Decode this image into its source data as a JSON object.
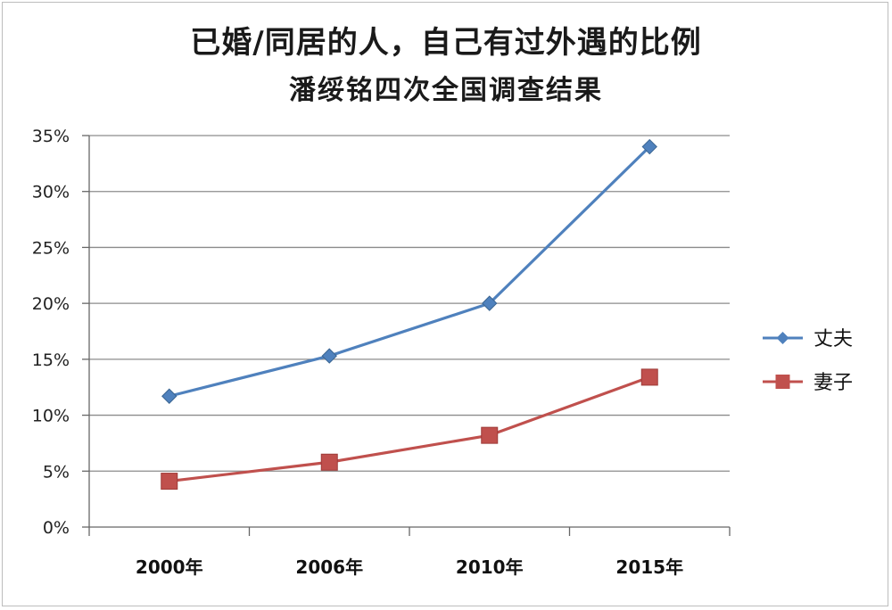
{
  "chart_data": {
    "type": "line",
    "title": "已婚/同居的人，自己有过外遇的比例",
    "subtitle": "潘绥铭四次全国调查结果",
    "categories": [
      "2000年",
      "2006年",
      "2010年",
      "2015年"
    ],
    "series": [
      {
        "name": "丈夫",
        "values": [
          11.7,
          15.3,
          20.0,
          34.0
        ],
        "color": "#4f81bd",
        "marker": "diamond"
      },
      {
        "name": "妻子",
        "values": [
          4.1,
          5.8,
          8.2,
          13.4
        ],
        "color": "#c0504d",
        "marker": "square"
      }
    ],
    "ylim": [
      0,
      35
    ],
    "yticks": [
      "0%",
      "5%",
      "10%",
      "15%",
      "20%",
      "25%",
      "30%",
      "35%"
    ],
    "grid": true,
    "legend_position": "right"
  }
}
